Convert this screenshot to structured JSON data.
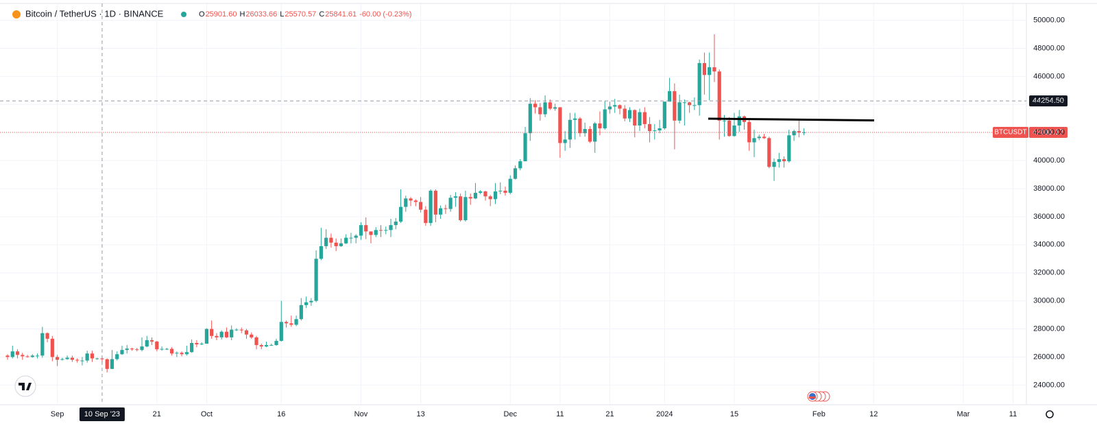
{
  "chart_data": {
    "type": "candlestick",
    "symbol": "Bitcoin / TetherUS · 1D · BINANCE",
    "ohlc": [
      {
        "label": "O",
        "value": "25901.60"
      },
      {
        "label": "H",
        "value": "26033.66"
      },
      {
        "label": "L",
        "value": "25570.57"
      },
      {
        "label": "C",
        "value": "25841.61"
      }
    ],
    "change": "-60.00 (-0.23%)",
    "up_color": "#26a69a",
    "down_color": "#ef5350",
    "ylim": [
      22600,
      51200
    ],
    "yticks": [
      {
        "value": 24000,
        "label": "24000.00"
      },
      {
        "value": 26000,
        "label": "26000.00"
      },
      {
        "value": 28000,
        "label": "28000.00"
      },
      {
        "value": 30000,
        "label": "30000.00"
      },
      {
        "value": 32000,
        "label": "32000.00"
      },
      {
        "value": 34000,
        "label": "34000.00"
      },
      {
        "value": 36000,
        "label": "36000.00"
      },
      {
        "value": 38000,
        "label": "38000.00"
      },
      {
        "value": 40000,
        "label": "40000.00"
      },
      {
        "value": 42000,
        "label": "42000.00"
      },
      {
        "value": 44000,
        "label": "44000.00"
      },
      {
        "value": 46000,
        "label": "46000.00"
      },
      {
        "value": 48000,
        "label": "48000.00"
      },
      {
        "value": 50000,
        "label": "50000.00"
      }
    ],
    "xticks": [
      {
        "value": 10,
        "label": "Sep"
      },
      {
        "value": 30,
        "label": "21"
      },
      {
        "value": 40,
        "label": "Oct"
      },
      {
        "value": 55,
        "label": "16"
      },
      {
        "value": 71,
        "label": "Nov"
      },
      {
        "value": 83,
        "label": "13"
      },
      {
        "value": 101,
        "label": "Dec"
      },
      {
        "value": 111,
        "label": "11"
      },
      {
        "value": 121,
        "label": "21"
      },
      {
        "value": 132,
        "label": "2024"
      },
      {
        "value": 146,
        "label": "15"
      },
      {
        "value": 163,
        "label": "Feb"
      },
      {
        "value": 174,
        "label": "12"
      },
      {
        "value": 192,
        "label": "Mar"
      },
      {
        "value": 202,
        "label": "11"
      }
    ],
    "crosshair": {
      "x": {
        "value": 19,
        "label": "10 Sep '23"
      },
      "y": {
        "value": 44254.5,
        "label": "44254.50"
      }
    },
    "last_price": {
      "value": 42011.17,
      "label": "42011.17",
      "name": "BTCUSDT"
    },
    "candles": [
      [
        26100,
        26200,
        25800,
        26000
      ],
      [
        26000,
        26800,
        25900,
        26400
      ],
      [
        26400,
        26550,
        25900,
        26150
      ],
      [
        26150,
        26300,
        25800,
        26050
      ],
      [
        26050,
        26150,
        25950,
        26000
      ],
      [
        26000,
        26200,
        25950,
        26100
      ],
      [
        26100,
        26250,
        25900,
        26100
      ],
      [
        26100,
        28150,
        25950,
        27700
      ],
      [
        27700,
        27750,
        27050,
        27300
      ],
      [
        27300,
        27500,
        25700,
        26000
      ],
      [
        26000,
        26150,
        25350,
        25800
      ],
      [
        25800,
        25950,
        25750,
        25850
      ],
      [
        25850,
        26100,
        25800,
        25950
      ],
      [
        25950,
        26100,
        25650,
        25800
      ],
      [
        25800,
        25900,
        25600,
        25750
      ],
      [
        25750,
        26000,
        25400,
        25750
      ],
      [
        25750,
        26450,
        25600,
        26250
      ],
      [
        26250,
        26450,
        25650,
        25900
      ],
      [
        25900,
        25950,
        25800,
        25901.6
      ],
      [
        25901.6,
        26033.66,
        25570.57,
        25841.61
      ],
      [
        25841.61,
        25900,
        24900,
        25150
      ],
      [
        25150,
        26500,
        25150,
        25850
      ],
      [
        25850,
        26400,
        25750,
        26200
      ],
      [
        26200,
        26800,
        26150,
        26500
      ],
      [
        26500,
        26850,
        26250,
        26600
      ],
      [
        26600,
        26650,
        26450,
        26550
      ],
      [
        26550,
        26650,
        26400,
        26500
      ],
      [
        26500,
        27400,
        26400,
        26750
      ],
      [
        26750,
        27500,
        26700,
        27200
      ],
      [
        27200,
        27400,
        26850,
        27100
      ],
      [
        27100,
        27150,
        26400,
        26550
      ],
      [
        26550,
        26750,
        26450,
        26580
      ],
      [
        26580,
        26650,
        26500,
        26580
      ],
      [
        26580,
        26700,
        26100,
        26250
      ],
      [
        26250,
        26400,
        26000,
        26300
      ],
      [
        26300,
        26400,
        26050,
        26200
      ],
      [
        26200,
        26800,
        26100,
        26350
      ],
      [
        26350,
        27250,
        26300,
        27000
      ],
      [
        27000,
        27200,
        26700,
        26900
      ],
      [
        26900,
        27050,
        26850,
        26950
      ],
      [
        26950,
        28050,
        26950,
        28000
      ],
      [
        28000,
        28600,
        27300,
        27500
      ],
      [
        27500,
        27700,
        27200,
        27400
      ],
      [
        27400,
        27900,
        27250,
        27800
      ],
      [
        27800,
        28100,
        27350,
        27400
      ],
      [
        27400,
        28250,
        27200,
        27950
      ],
      [
        27950,
        28050,
        27850,
        27950
      ],
      [
        27950,
        28100,
        27700,
        27900
      ],
      [
        27900,
        28000,
        27300,
        27600
      ],
      [
        27600,
        27750,
        27300,
        27400
      ],
      [
        27400,
        27500,
        26550,
        26850
      ],
      [
        26850,
        26950,
        26550,
        26750
      ],
      [
        26750,
        27100,
        26700,
        26850
      ],
      [
        26850,
        26950,
        26800,
        26850
      ],
      [
        26850,
        27300,
        26800,
        27150
      ],
      [
        27150,
        30000,
        27100,
        28500
      ],
      [
        28500,
        28600,
        28100,
        28400
      ],
      [
        28400,
        28950,
        28150,
        28300
      ],
      [
        28300,
        28950,
        28200,
        28700
      ],
      [
        28700,
        30200,
        28600,
        29700
      ],
      [
        29700,
        30300,
        29500,
        29900
      ],
      [
        29900,
        30200,
        29650,
        30000
      ],
      [
        30000,
        33600,
        29900,
        33000
      ],
      [
        33000,
        35200,
        32900,
        33900
      ],
      [
        33900,
        35100,
        33700,
        34500
      ],
      [
        34500,
        34800,
        33800,
        34150
      ],
      [
        34150,
        34450,
        33550,
        33900
      ],
      [
        33900,
        34450,
        33850,
        34100
      ],
      [
        34100,
        34750,
        34050,
        34500
      ],
      [
        34500,
        34850,
        34100,
        34500
      ],
      [
        34500,
        34750,
        34100,
        34650
      ],
      [
        34650,
        35600,
        34350,
        35400
      ],
      [
        35400,
        35950,
        34400,
        34950
      ],
      [
        34950,
        34950,
        34100,
        34700
      ],
      [
        34700,
        35250,
        34550,
        35050
      ],
      [
        35050,
        35400,
        34550,
        35000
      ],
      [
        35000,
        35300,
        34750,
        35050
      ],
      [
        35050,
        35850,
        34550,
        35400
      ],
      [
        35400,
        35900,
        35100,
        35650
      ],
      [
        35650,
        37950,
        35550,
        36700
      ],
      [
        36700,
        37500,
        36350,
        37300
      ],
      [
        37300,
        37400,
        36750,
        37150
      ],
      [
        37150,
        37250,
        36750,
        37050
      ],
      [
        37050,
        37400,
        36300,
        36500
      ],
      [
        36500,
        36750,
        35350,
        35550
      ],
      [
        35550,
        37950,
        35350,
        37850
      ],
      [
        37850,
        37950,
        35600,
        36150
      ],
      [
        36150,
        36800,
        35850,
        36600
      ],
      [
        36600,
        36850,
        36200,
        36550
      ],
      [
        36550,
        37550,
        36350,
        37350
      ],
      [
        37350,
        37750,
        36700,
        37450
      ],
      [
        37450,
        37650,
        35650,
        35750
      ],
      [
        35750,
        37850,
        35650,
        37400
      ],
      [
        37400,
        37650,
        36850,
        37300
      ],
      [
        37300,
        38400,
        37250,
        37700
      ],
      [
        37700,
        37900,
        37600,
        37800
      ],
      [
        37800,
        37850,
        37150,
        37450
      ],
      [
        37450,
        37550,
        36750,
        37250
      ],
      [
        37250,
        38400,
        36900,
        37800
      ],
      [
        37800,
        38450,
        37600,
        37850
      ],
      [
        37850,
        38150,
        37500,
        37700
      ],
      [
        37700,
        38950,
        37600,
        38700
      ],
      [
        38700,
        39650,
        38650,
        39450
      ],
      [
        39450,
        40100,
        39300,
        39950
      ],
      [
        39950,
        42400,
        39950,
        41950
      ],
      [
        41950,
        44450,
        41400,
        44050
      ],
      [
        44050,
        44300,
        43350,
        43800
      ],
      [
        43800,
        44100,
        42850,
        43300
      ],
      [
        43300,
        44650,
        43100,
        44150
      ],
      [
        44150,
        44350,
        43600,
        43700
      ],
      [
        43700,
        44050,
        43550,
        43800
      ],
      [
        43800,
        43800,
        40200,
        41250
      ],
      [
        41250,
        42100,
        40700,
        41500
      ],
      [
        41500,
        43400,
        40900,
        42900
      ],
      [
        42900,
        43400,
        41500,
        43000
      ],
      [
        43000,
        43100,
        41700,
        41950
      ],
      [
        41950,
        42700,
        41700,
        42250
      ],
      [
        42250,
        42450,
        41250,
        41350
      ],
      [
        41350,
        42750,
        40550,
        42650
      ],
      [
        42650,
        43500,
        41800,
        42300
      ],
      [
        42300,
        44250,
        42200,
        43650
      ],
      [
        43650,
        44200,
        43350,
        43850
      ],
      [
        43850,
        44400,
        43400,
        43950
      ],
      [
        43950,
        44000,
        43300,
        43700
      ],
      [
        43700,
        43950,
        42800,
        43000
      ],
      [
        43000,
        43800,
        42750,
        43600
      ],
      [
        43600,
        43650,
        41650,
        42500
      ],
      [
        42500,
        43700,
        42100,
        43450
      ],
      [
        43450,
        43800,
        42300,
        42600
      ],
      [
        42600,
        43100,
        41300,
        42100
      ],
      [
        42100,
        42600,
        41500,
        42150
      ],
      [
        42150,
        42900,
        41950,
        42300
      ],
      [
        42300,
        44200,
        42200,
        44200
      ],
      [
        44200,
        45900,
        44200,
        44950
      ],
      [
        44950,
        45500,
        40800,
        42850
      ],
      [
        42850,
        44700,
        42650,
        44150
      ],
      [
        44150,
        44350,
        42500,
        44150
      ],
      [
        44150,
        44200,
        43400,
        43950
      ],
      [
        43950,
        44500,
        43600,
        43950
      ],
      [
        43950,
        47200,
        43200,
        46950
      ],
      [
        46950,
        47700,
        44700,
        46100
      ],
      [
        46100,
        47700,
        44300,
        46650
      ],
      [
        46650,
        49000,
        45600,
        46350
      ],
      [
        46350,
        46500,
        41500,
        42850
      ],
      [
        42850,
        43250,
        41700,
        42850
      ],
      [
        42850,
        43100,
        41700,
        41750
      ],
      [
        41750,
        43400,
        41700,
        42500
      ],
      [
        42500,
        43600,
        42050,
        43150
      ],
      [
        43150,
        43200,
        42200,
        42750
      ],
      [
        42750,
        42900,
        40700,
        41300
      ],
      [
        41300,
        42200,
        40250,
        41600
      ],
      [
        41600,
        41850,
        41450,
        41700
      ],
      [
        41700,
        41900,
        41550,
        41600
      ],
      [
        41600,
        41700,
        39450,
        39550
      ],
      [
        39550,
        40150,
        38550,
        39900
      ],
      [
        39900,
        40550,
        39500,
        40100
      ],
      [
        40100,
        40300,
        39500,
        39950
      ],
      [
        39950,
        42200,
        39850,
        41800
      ],
      [
        41800,
        42200,
        41400,
        42100
      ],
      [
        42100,
        42850,
        41650,
        42000
      ],
      [
        42000,
        42300,
        41800,
        42011.17
      ]
    ]
  }
}
